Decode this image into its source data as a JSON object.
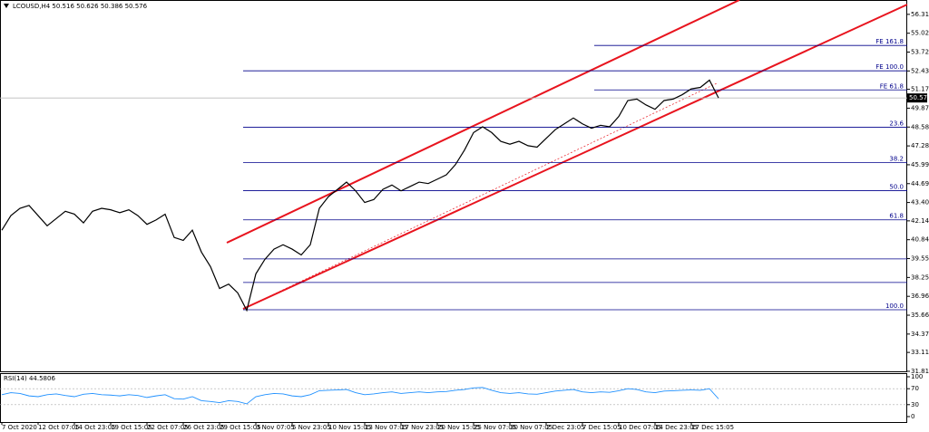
{
  "chart_data": {
    "type": "line",
    "title": "LCOUSD,H4  50.516 50.626 50.386 50.576",
    "categories": [
      "7 Oct 2020",
      null,
      null,
      null,
      "12 Oct 07:05",
      null,
      null,
      null,
      "14 Oct 23:05",
      null,
      null,
      null,
      "19 Oct 15:05",
      null,
      null,
      null,
      "22 Oct 07:05",
      null,
      null,
      null,
      "26 Oct 23:05",
      null,
      null,
      null,
      "29 Oct 15:05",
      null,
      null,
      null,
      "3 Nov 07:05",
      null,
      null,
      null,
      "5 Nov 23:05",
      null,
      null,
      null,
      "10 Nov 15:05",
      null,
      null,
      null,
      "13 Nov 07:05",
      null,
      null,
      null,
      "17 Nov 23:05",
      null,
      null,
      null,
      "20 Nov 15:05",
      null,
      null,
      null,
      "25 Nov 07:05",
      null,
      null,
      null,
      "30 Nov 07:05",
      null,
      null,
      null,
      "2 Dec 23:05",
      null,
      null,
      null,
      "7 Dec 15:05",
      null,
      null,
      null,
      "10 Dec 07:05",
      null,
      null,
      null,
      "14 Dec 23:05",
      null,
      null,
      null,
      "17 Dec 15:05",
      null,
      null,
      null
    ],
    "series": [
      {
        "name": "LCOUSD",
        "color": "#000000",
        "values": [
          41.5,
          42.5,
          43.0,
          43.2,
          42.5,
          41.8,
          42.3,
          42.8,
          42.6,
          42.0,
          42.8,
          43.0,
          42.9,
          42.7,
          42.9,
          42.5,
          41.9,
          42.2,
          42.6,
          41.0,
          40.8,
          41.5,
          40.0,
          39.0,
          37.5,
          37.8,
          37.2,
          36.0,
          38.5,
          39.5,
          40.2,
          40.5,
          40.2,
          39.8,
          40.5,
          43.0,
          43.8,
          44.3,
          44.8,
          44.2,
          43.4,
          43.6,
          44.3,
          44.6,
          44.2,
          44.5,
          44.8,
          44.7,
          45.0,
          45.3,
          46.0,
          47.0,
          48.2,
          48.6,
          48.2,
          47.6,
          47.4,
          47.6,
          47.3,
          47.2,
          47.8,
          48.4,
          48.8,
          49.2,
          48.8,
          48.5,
          48.7,
          48.6,
          49.3,
          50.4,
          50.5,
          50.1,
          49.8,
          50.4,
          50.5,
          50.8,
          51.2,
          51.3,
          51.8,
          50.576
        ]
      }
    ],
    "ylim": [
      31.75,
      57.3
    ],
    "yticks": [
      56.315,
      {
        "value": 55.02,
        "label": "55.020"
      },
      53.725,
      {
        "value": 52.43,
        "label": "52.430"
      },
      {
        "value": 51.17,
        "label": "51.170"
      },
      49.875,
      {
        "value": 48.58,
        "label": "48.580"
      },
      47.285,
      {
        "value": 45.99,
        "label": "45.990"
      },
      44.695,
      {
        "value": 43.4,
        "label": "43.400"
      },
      {
        "value": 42.14,
        "label": "42.140"
      },
      40.845,
      {
        "value": 39.55,
        "label": "39.550"
      },
      38.255,
      {
        "value": 36.96,
        "label": "36.960"
      },
      35.665,
      {
        "value": 34.37,
        "label": "34.370"
      },
      {
        "value": 33.11,
        "label": "33.110"
      },
      31.815
    ],
    "current_price": {
      "value": 50.576,
      "label": "50.576"
    },
    "fib_levels": [
      {
        "value": 54.18,
        "label": "FE 161.8"
      },
      {
        "value": 52.44,
        "label": "FE 100.0"
      },
      {
        "value": 51.13,
        "label": "FE 61.8"
      },
      {
        "value": 48.57,
        "label": "23.6"
      },
      {
        "value": 46.14,
        "label": "38.2"
      },
      {
        "value": 44.21,
        "label": "50.0"
      },
      {
        "value": 42.21,
        "label": "61.8"
      },
      {
        "value": 39.53,
        "label": null
      },
      {
        "value": 37.91,
        "label": null
      },
      {
        "value": 36.04,
        "label": "100.0"
      }
    ],
    "rsi": {
      "title": "RSI(14) 44.5806",
      "color": "#1e90ff",
      "values": [
        55,
        60,
        58,
        52,
        50,
        55,
        57,
        53,
        50,
        56,
        58,
        55,
        54,
        52,
        55,
        53,
        48,
        52,
        55,
        45,
        44,
        50,
        40,
        38,
        35,
        40,
        38,
        32,
        50,
        55,
        58,
        57,
        52,
        50,
        55,
        65,
        66,
        67,
        68,
        60,
        55,
        57,
        60,
        62,
        58,
        60,
        62,
        60,
        62,
        63,
        66,
        68,
        72,
        73,
        66,
        60,
        58,
        60,
        57,
        56,
        60,
        64,
        66,
        68,
        62,
        60,
        62,
        61,
        65,
        70,
        68,
        62,
        60,
        64,
        65,
        66,
        67,
        66,
        70,
        44.5806
      ],
      "ylim": [
        0,
        100
      ],
      "yticks": [
        100,
        70,
        30,
        0
      ]
    }
  }
}
